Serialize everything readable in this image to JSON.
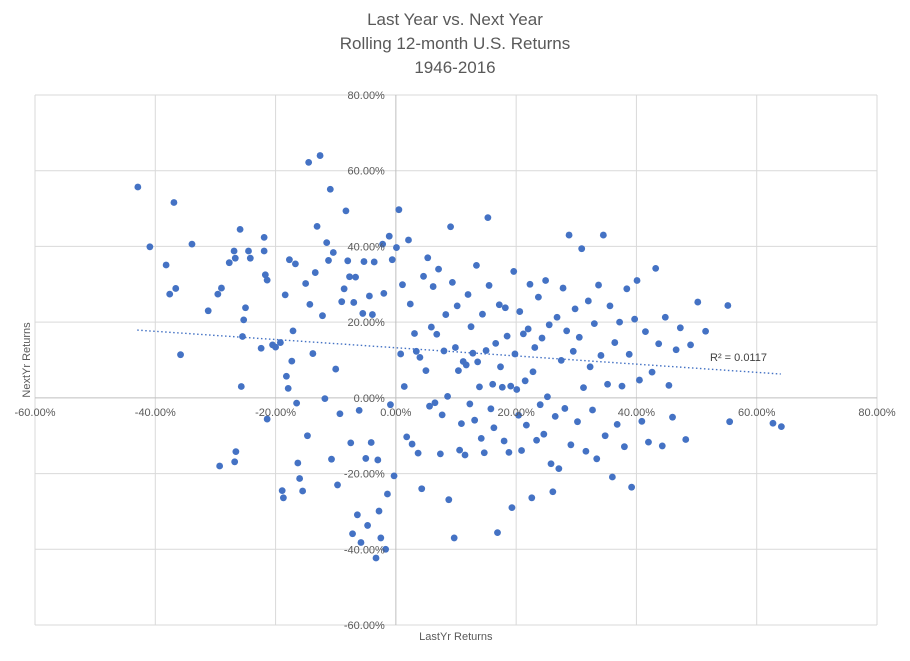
{
  "chart_data": {
    "type": "scatter",
    "title_lines": [
      "Last Year vs. Next Year",
      "Rolling 12-month U.S. Returns",
      "1946-2016"
    ],
    "xlabel": "LastYr Returns",
    "ylabel": "NextYr  Returns",
    "xlim": [
      -60,
      80
    ],
    "ylim": [
      -60,
      80
    ],
    "x_ticks": [
      -60,
      -40,
      -20,
      0,
      20,
      40,
      60,
      80
    ],
    "y_ticks": [
      -60,
      -40,
      -20,
      0,
      20,
      40,
      60,
      80
    ],
    "x_tick_labels": [
      "-60.00%",
      "-40.00%",
      "-20.00%",
      "0.00%",
      "20.00%",
      "40.00%",
      "60.00%",
      "80.00%"
    ],
    "y_tick_labels": [
      "-60.00%",
      "-40.00%",
      "-20.00%",
      "0.00%",
      "20.00%",
      "40.00%",
      "60.00%",
      "80.00%"
    ],
    "grid": true,
    "legend": "none",
    "marker_color": "#4472C4",
    "trendline": {
      "type": "linear",
      "style": "dotted",
      "color": "#4472C4",
      "x_range": [
        -43,
        64
      ],
      "y_values": [
        17.9,
        6.3
      ],
      "r2_label": "R² = 0.0117"
    },
    "points": [
      [
        -42.9,
        55.7
      ],
      [
        -40.9,
        39.9
      ],
      [
        -38.2,
        35.1
      ],
      [
        -37.6,
        27.4
      ],
      [
        -36.9,
        51.6
      ],
      [
        -36.6,
        28.9
      ],
      [
        -35.8,
        11.4
      ],
      [
        -33.9,
        40.6
      ],
      [
        -31.2,
        23.0
      ],
      [
        -29.6,
        27.4
      ],
      [
        -29.0,
        29.0
      ],
      [
        -29.3,
        -18.0
      ],
      [
        -27.7,
        35.7
      ],
      [
        -26.9,
        38.8
      ],
      [
        -26.7,
        36.9
      ],
      [
        -26.8,
        -16.9
      ],
      [
        -26.6,
        -14.2
      ],
      [
        -25.9,
        44.5
      ],
      [
        -25.7,
        3.0
      ],
      [
        -25.5,
        16.2
      ],
      [
        -25.3,
        20.6
      ],
      [
        -25.0,
        23.8
      ],
      [
        -24.5,
        38.8
      ],
      [
        -24.2,
        36.9
      ],
      [
        -22.4,
        13.1
      ],
      [
        -21.9,
        42.4
      ],
      [
        -21.9,
        38.8
      ],
      [
        -21.7,
        32.5
      ],
      [
        -21.4,
        31.1
      ],
      [
        -21.4,
        -5.6
      ],
      [
        -20.5,
        14.0
      ],
      [
        -20.0,
        13.4
      ],
      [
        -19.2,
        14.6
      ],
      [
        -18.9,
        -24.5
      ],
      [
        -18.7,
        -26.4
      ],
      [
        -18.4,
        27.2
      ],
      [
        -18.2,
        5.7
      ],
      [
        -17.9,
        2.5
      ],
      [
        -17.7,
        36.5
      ],
      [
        -17.3,
        9.7
      ],
      [
        -17.1,
        17.7
      ],
      [
        -16.7,
        35.4
      ],
      [
        -16.5,
        -1.4
      ],
      [
        -16.3,
        -17.2
      ],
      [
        -16.0,
        -21.3
      ],
      [
        -15.5,
        -24.6
      ],
      [
        -15.0,
        30.2
      ],
      [
        -14.7,
        -10.0
      ],
      [
        -14.5,
        62.2
      ],
      [
        -14.3,
        24.7
      ],
      [
        -13.8,
        11.7
      ],
      [
        -13.4,
        33.1
      ],
      [
        -13.1,
        45.3
      ],
      [
        -12.6,
        64.0
      ],
      [
        -12.2,
        21.7
      ],
      [
        -11.8,
        -0.2
      ],
      [
        -11.5,
        41.0
      ],
      [
        -11.2,
        36.3
      ],
      [
        -10.9,
        55.1
      ],
      [
        -10.7,
        -16.2
      ],
      [
        -10.4,
        38.4
      ],
      [
        -10.0,
        7.6
      ],
      [
        -9.7,
        -23.0
      ],
      [
        -9.3,
        -4.2
      ],
      [
        -9.0,
        25.4
      ],
      [
        -8.6,
        28.8
      ],
      [
        -8.3,
        49.4
      ],
      [
        -8.0,
        36.2
      ],
      [
        -7.7,
        32.0
      ],
      [
        -7.5,
        -11.9
      ],
      [
        -7.2,
        -35.9
      ],
      [
        -7.0,
        25.2
      ],
      [
        -6.7,
        31.9
      ],
      [
        -6.4,
        -30.9
      ],
      [
        -6.1,
        -3.3
      ],
      [
        -5.8,
        -38.2
      ],
      [
        -5.5,
        22.3
      ],
      [
        -5.3,
        36.0
      ],
      [
        -5.0,
        -16.0
      ],
      [
        -4.7,
        -33.7
      ],
      [
        -4.4,
        26.9
      ],
      [
        -4.1,
        -11.8
      ],
      [
        -3.9,
        22.0
      ],
      [
        -3.6,
        35.9
      ],
      [
        -3.3,
        -42.3
      ],
      [
        -3.0,
        -16.4
      ],
      [
        -2.8,
        -29.9
      ],
      [
        -2.5,
        -37.0
      ],
      [
        -2.2,
        40.6
      ],
      [
        -2.0,
        27.6
      ],
      [
        -1.7,
        -40.0
      ],
      [
        -1.4,
        -25.4
      ],
      [
        -1.1,
        42.7
      ],
      [
        -0.9,
        -1.8
      ],
      [
        -0.6,
        36.5
      ],
      [
        -0.3,
        -20.6
      ],
      [
        0.1,
        39.7
      ],
      [
        0.5,
        49.7
      ],
      [
        0.8,
        11.6
      ],
      [
        1.1,
        29.9
      ],
      [
        1.4,
        3.0
      ],
      [
        1.8,
        -10.3
      ],
      [
        2.1,
        41.7
      ],
      [
        2.4,
        24.8
      ],
      [
        2.7,
        -12.2
      ],
      [
        3.1,
        17.0
      ],
      [
        3.4,
        12.3
      ],
      [
        3.7,
        -14.6
      ],
      [
        4.0,
        10.7
      ],
      [
        4.3,
        -24.0
      ],
      [
        4.6,
        32.1
      ],
      [
        5.0,
        7.2
      ],
      [
        5.3,
        37.0
      ],
      [
        5.6,
        -2.2
      ],
      [
        5.9,
        18.7
      ],
      [
        6.2,
        29.4
      ],
      [
        6.5,
        -1.3
      ],
      [
        6.8,
        16.8
      ],
      [
        7.1,
        34.0
      ],
      [
        7.4,
        -14.8
      ],
      [
        7.7,
        -4.5
      ],
      [
        8.0,
        12.4
      ],
      [
        8.3,
        22.0
      ],
      [
        8.6,
        0.4
      ],
      [
        8.8,
        -26.9
      ],
      [
        9.1,
        45.2
      ],
      [
        9.4,
        30.5
      ],
      [
        9.7,
        -37.0
      ],
      [
        9.9,
        13.3
      ],
      [
        10.2,
        24.3
      ],
      [
        10.4,
        7.2
      ],
      [
        10.6,
        -13.8
      ],
      [
        10.9,
        -6.8
      ],
      [
        11.2,
        9.6
      ],
      [
        11.5,
        -15.1
      ],
      [
        11.7,
        8.7
      ],
      [
        12.0,
        27.3
      ],
      [
        12.3,
        -1.6
      ],
      [
        12.5,
        18.8
      ],
      [
        12.8,
        11.8
      ],
      [
        13.1,
        -5.9
      ],
      [
        13.4,
        35.0
      ],
      [
        13.6,
        9.5
      ],
      [
        13.9,
        2.9
      ],
      [
        14.2,
        -10.7
      ],
      [
        14.4,
        22.1
      ],
      [
        14.7,
        -14.5
      ],
      [
        15.0,
        12.5
      ],
      [
        15.3,
        47.6
      ],
      [
        15.5,
        29.7
      ],
      [
        15.8,
        -2.9
      ],
      [
        16.1,
        3.6
      ],
      [
        16.3,
        -7.9
      ],
      [
        16.6,
        14.4
      ],
      [
        16.9,
        -35.6
      ],
      [
        17.2,
        24.6
      ],
      [
        17.4,
        8.2
      ],
      [
        17.7,
        2.8
      ],
      [
        18.0,
        -11.4
      ],
      [
        18.2,
        23.8
      ],
      [
        18.5,
        16.3
      ],
      [
        18.8,
        -14.4
      ],
      [
        19.1,
        3.1
      ],
      [
        19.3,
        -29.0
      ],
      [
        19.6,
        33.4
      ],
      [
        19.8,
        11.6
      ],
      [
        20.1,
        2.2
      ],
      [
        20.4,
        -4.6
      ],
      [
        20.6,
        22.8
      ],
      [
        20.9,
        -13.9
      ],
      [
        21.2,
        16.9
      ],
      [
        21.5,
        4.5
      ],
      [
        21.7,
        -7.2
      ],
      [
        22.0,
        18.2
      ],
      [
        22.3,
        30.0
      ],
      [
        22.6,
        -26.4
      ],
      [
        22.8,
        6.9
      ],
      [
        23.1,
        13.3
      ],
      [
        23.4,
        -11.2
      ],
      [
        23.7,
        26.6
      ],
      [
        24.0,
        -1.8
      ],
      [
        24.3,
        15.8
      ],
      [
        24.6,
        -9.6
      ],
      [
        24.9,
        31.0
      ],
      [
        25.2,
        0.3
      ],
      [
        25.5,
        19.3
      ],
      [
        25.8,
        -17.4
      ],
      [
        26.1,
        -24.8
      ],
      [
        26.5,
        -4.9
      ],
      [
        26.8,
        21.3
      ],
      [
        27.1,
        -18.7
      ],
      [
        27.5,
        9.9
      ],
      [
        27.8,
        29.0
      ],
      [
        28.1,
        -2.8
      ],
      [
        28.4,
        17.7
      ],
      [
        28.8,
        43.0
      ],
      [
        29.1,
        -12.4
      ],
      [
        29.5,
        12.3
      ],
      [
        29.8,
        23.5
      ],
      [
        30.2,
        -6.3
      ],
      [
        30.5,
        16.0
      ],
      [
        30.9,
        39.4
      ],
      [
        31.2,
        2.7
      ],
      [
        31.6,
        -14.1
      ],
      [
        32.0,
        25.6
      ],
      [
        32.3,
        8.2
      ],
      [
        32.7,
        -3.2
      ],
      [
        33.0,
        19.6
      ],
      [
        33.4,
        -16.1
      ],
      [
        33.7,
        29.8
      ],
      [
        34.1,
        11.2
      ],
      [
        34.5,
        43.0
      ],
      [
        34.8,
        -10.0
      ],
      [
        35.2,
        3.6
      ],
      [
        35.6,
        24.3
      ],
      [
        36.0,
        -20.9
      ],
      [
        36.4,
        14.6
      ],
      [
        36.8,
        -7.0
      ],
      [
        37.2,
        20.0
      ],
      [
        37.6,
        3.1
      ],
      [
        38.0,
        -12.9
      ],
      [
        38.4,
        28.8
      ],
      [
        38.8,
        11.5
      ],
      [
        39.2,
        -23.6
      ],
      [
        39.7,
        20.8
      ],
      [
        40.1,
        31.0
      ],
      [
        40.5,
        4.7
      ],
      [
        40.9,
        -6.2
      ],
      [
        41.5,
        17.5
      ],
      [
        42.0,
        -11.7
      ],
      [
        42.6,
        6.8
      ],
      [
        43.2,
        34.2
      ],
      [
        43.7,
        14.3
      ],
      [
        44.3,
        -12.7
      ],
      [
        44.8,
        21.3
      ],
      [
        45.4,
        3.3
      ],
      [
        46.0,
        -5.1
      ],
      [
        46.6,
        12.7
      ],
      [
        47.3,
        18.5
      ],
      [
        48.2,
        -11.0
      ],
      [
        49.0,
        14.0
      ],
      [
        50.2,
        25.3
      ],
      [
        51.5,
        17.6
      ],
      [
        55.2,
        24.4
      ],
      [
        55.5,
        -6.3
      ],
      [
        62.7,
        -6.7
      ],
      [
        64.1,
        -7.6
      ]
    ]
  }
}
